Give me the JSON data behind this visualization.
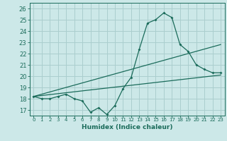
{
  "xlabel": "Humidex (Indice chaleur)",
  "bg_color": "#cce8e8",
  "grid_color": "#aacece",
  "line_color": "#1a6b5a",
  "spine_color": "#1a6b5a",
  "xlim": [
    -0.5,
    23.5
  ],
  "ylim": [
    16.5,
    26.5
  ],
  "xticks": [
    0,
    1,
    2,
    3,
    4,
    5,
    6,
    7,
    8,
    9,
    10,
    11,
    12,
    13,
    14,
    15,
    16,
    17,
    18,
    19,
    20,
    21,
    22,
    23
  ],
  "yticks": [
    17,
    18,
    19,
    20,
    21,
    22,
    23,
    24,
    25,
    26
  ],
  "line1_x": [
    0,
    1,
    2,
    3,
    4,
    5,
    6,
    7,
    8,
    9,
    10,
    11,
    12,
    13,
    14,
    15,
    16,
    17,
    18,
    19,
    20,
    21,
    22,
    23
  ],
  "line1_y": [
    18.2,
    18.0,
    18.0,
    18.2,
    18.4,
    18.0,
    17.8,
    16.8,
    17.2,
    16.6,
    17.4,
    18.9,
    19.9,
    22.4,
    24.7,
    25.0,
    25.6,
    25.2,
    22.8,
    22.2,
    21.0,
    20.6,
    20.3,
    20.3
  ],
  "line2_x": [
    0,
    23
  ],
  "line2_y": [
    18.2,
    20.1
  ],
  "line3_x": [
    0,
    23
  ],
  "line3_y": [
    18.2,
    22.8
  ]
}
